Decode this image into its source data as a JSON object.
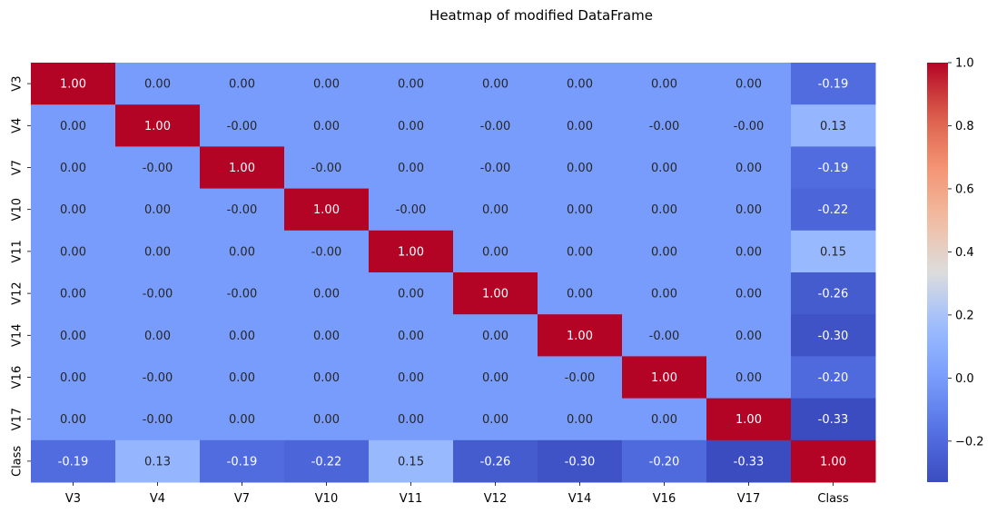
{
  "chart_data": {
    "type": "heatmap",
    "title": "Heatmap of modified DataFrame",
    "xlabel": "",
    "ylabel": "",
    "x_categories": [
      "V3",
      "V4",
      "V7",
      "V10",
      "V11",
      "V12",
      "V14",
      "V16",
      "V17",
      "Class"
    ],
    "y_categories": [
      "V3",
      "V4",
      "V7",
      "V10",
      "V11",
      "V12",
      "V14",
      "V16",
      "V17",
      "Class"
    ],
    "values": [
      [
        1.0,
        0.0,
        0.0,
        0.0,
        0.0,
        0.0,
        0.0,
        0.0,
        0.0,
        -0.19
      ],
      [
        0.0,
        1.0,
        -0.0,
        0.0,
        0.0,
        -0.0,
        0.0,
        -0.0,
        -0.0,
        0.13
      ],
      [
        0.0,
        -0.0,
        1.0,
        -0.0,
        0.0,
        -0.0,
        0.0,
        0.0,
        0.0,
        -0.19
      ],
      [
        0.0,
        0.0,
        -0.0,
        1.0,
        -0.0,
        0.0,
        0.0,
        0.0,
        0.0,
        -0.22
      ],
      [
        0.0,
        0.0,
        0.0,
        -0.0,
        1.0,
        0.0,
        0.0,
        0.0,
        0.0,
        0.15
      ],
      [
        0.0,
        -0.0,
        -0.0,
        0.0,
        0.0,
        1.0,
        0.0,
        0.0,
        0.0,
        -0.26
      ],
      [
        0.0,
        0.0,
        0.0,
        0.0,
        0.0,
        0.0,
        1.0,
        -0.0,
        0.0,
        -0.3
      ],
      [
        0.0,
        -0.0,
        0.0,
        0.0,
        0.0,
        0.0,
        -0.0,
        1.0,
        0.0,
        -0.2
      ],
      [
        0.0,
        -0.0,
        0.0,
        0.0,
        0.0,
        0.0,
        0.0,
        0.0,
        1.0,
        -0.33
      ],
      [
        -0.19,
        0.13,
        -0.19,
        -0.22,
        0.15,
        -0.26,
        -0.3,
        -0.2,
        -0.33,
        1.0
      ]
    ],
    "cell_labels": [
      [
        "1.00",
        "0.00",
        "0.00",
        "0.00",
        "0.00",
        "0.00",
        "0.00",
        "0.00",
        "0.00",
        "-0.19"
      ],
      [
        "0.00",
        "1.00",
        "-0.00",
        "0.00",
        "0.00",
        "-0.00",
        "0.00",
        "-0.00",
        "-0.00",
        "0.13"
      ],
      [
        "0.00",
        "-0.00",
        "1.00",
        "-0.00",
        "0.00",
        "-0.00",
        "0.00",
        "0.00",
        "0.00",
        "-0.19"
      ],
      [
        "0.00",
        "0.00",
        "-0.00",
        "1.00",
        "-0.00",
        "0.00",
        "0.00",
        "0.00",
        "0.00",
        "-0.22"
      ],
      [
        "0.00",
        "0.00",
        "0.00",
        "-0.00",
        "1.00",
        "0.00",
        "0.00",
        "0.00",
        "0.00",
        "0.15"
      ],
      [
        "0.00",
        "-0.00",
        "-0.00",
        "0.00",
        "0.00",
        "1.00",
        "0.00",
        "0.00",
        "0.00",
        "-0.26"
      ],
      [
        "0.00",
        "0.00",
        "0.00",
        "0.00",
        "0.00",
        "0.00",
        "1.00",
        "-0.00",
        "0.00",
        "-0.30"
      ],
      [
        "0.00",
        "-0.00",
        "0.00",
        "0.00",
        "0.00",
        "0.00",
        "-0.00",
        "1.00",
        "0.00",
        "-0.20"
      ],
      [
        "0.00",
        "-0.00",
        "0.00",
        "0.00",
        "0.00",
        "0.00",
        "0.00",
        "0.00",
        "1.00",
        "-0.33"
      ],
      [
        "-0.19",
        "0.13",
        "-0.19",
        "-0.22",
        "0.15",
        "-0.26",
        "-0.30",
        "-0.20",
        "-0.33",
        "1.00"
      ]
    ],
    "colormap": "coolwarm",
    "vmin": -0.33,
    "vmax": 1.0,
    "colorbar": {
      "ticks": [
        -0.2,
        0.0,
        0.2,
        0.4,
        0.6,
        0.8,
        1.0
      ],
      "tick_labels": [
        "−0.2",
        "0.0",
        "0.2",
        "0.4",
        "0.6",
        "0.8",
        "1.0"
      ],
      "placement": "right"
    },
    "grid": false
  }
}
